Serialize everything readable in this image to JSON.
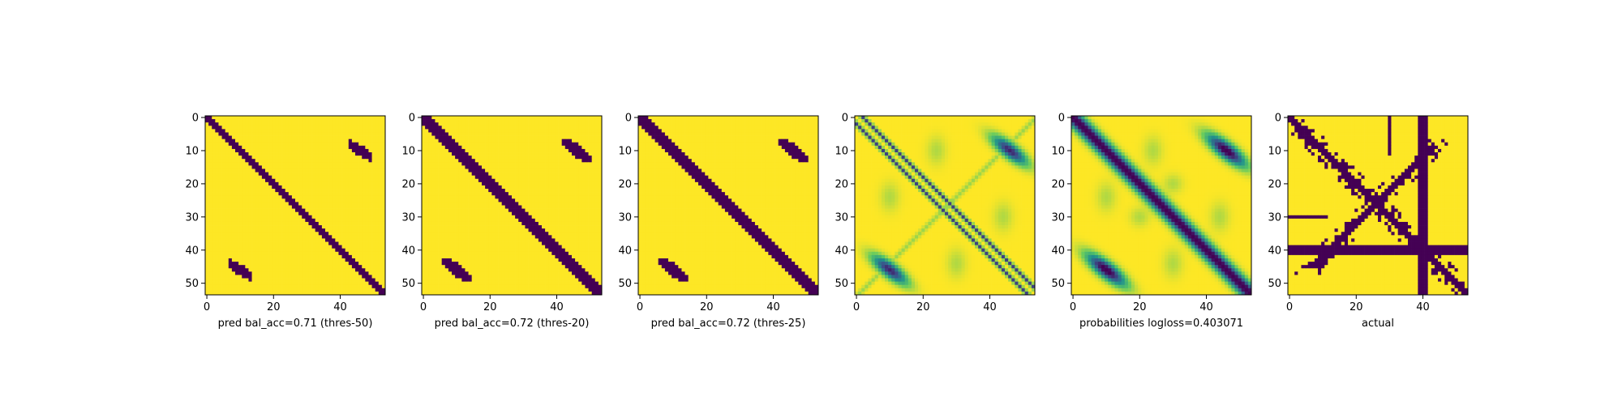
{
  "figure": {
    "background": "#ffffff",
    "colors": {
      "low": "#440154",
      "high": "#fde725"
    },
    "grid": false
  },
  "chart_data": [
    {
      "type": "heatmap",
      "kind": "binary",
      "threshold_variant": 1,
      "xlabel": "pred bal_acc=0.71 (thres-50)",
      "xticks": [
        0,
        20,
        40
      ],
      "yticks": [
        0,
        10,
        20,
        30,
        40,
        50
      ],
      "xlim": [
        0,
        54
      ],
      "ylim": [
        54,
        0
      ],
      "size": 54
    },
    {
      "type": "heatmap",
      "kind": "binary",
      "threshold_variant": 2,
      "xlabel": "pred bal_acc=0.72 (thres-20)",
      "xticks": [
        0,
        20,
        40
      ],
      "yticks": [
        0,
        10,
        20,
        30,
        40,
        50
      ],
      "xlim": [
        0,
        54
      ],
      "ylim": [
        54,
        0
      ],
      "size": 54
    },
    {
      "type": "heatmap",
      "kind": "binary",
      "threshold_variant": 3,
      "xlabel": "pred bal_acc=0.72 (thres-25)",
      "xticks": [
        0,
        20,
        40
      ],
      "yticks": [
        0,
        10,
        20,
        30,
        40,
        50
      ],
      "xlim": [
        0,
        54
      ],
      "ylim": [
        54,
        0
      ],
      "size": 54
    },
    {
      "type": "heatmap",
      "kind": "continuous-double-line",
      "xlabel": "",
      "xticks": [
        0,
        20,
        40
      ],
      "yticks": [
        0,
        10,
        20,
        30,
        40,
        50
      ],
      "xlim": [
        0,
        54
      ],
      "ylim": [
        54,
        0
      ],
      "size": 54
    },
    {
      "type": "heatmap",
      "kind": "continuous",
      "xlabel": "probabilities logloss=0.403071",
      "xticks": [
        0,
        20,
        40
      ],
      "yticks": [
        0,
        10,
        20,
        30,
        40,
        50
      ],
      "xlim": [
        0,
        54
      ],
      "ylim": [
        54,
        0
      ],
      "size": 54
    },
    {
      "type": "heatmap",
      "kind": "actual",
      "xlabel": "actual",
      "xticks": [
        0,
        20,
        40
      ],
      "yticks": [
        0,
        10,
        20,
        30,
        40,
        50
      ],
      "xlim": [
        0,
        54
      ],
      "ylim": [
        54,
        0
      ],
      "size": 54
    }
  ]
}
